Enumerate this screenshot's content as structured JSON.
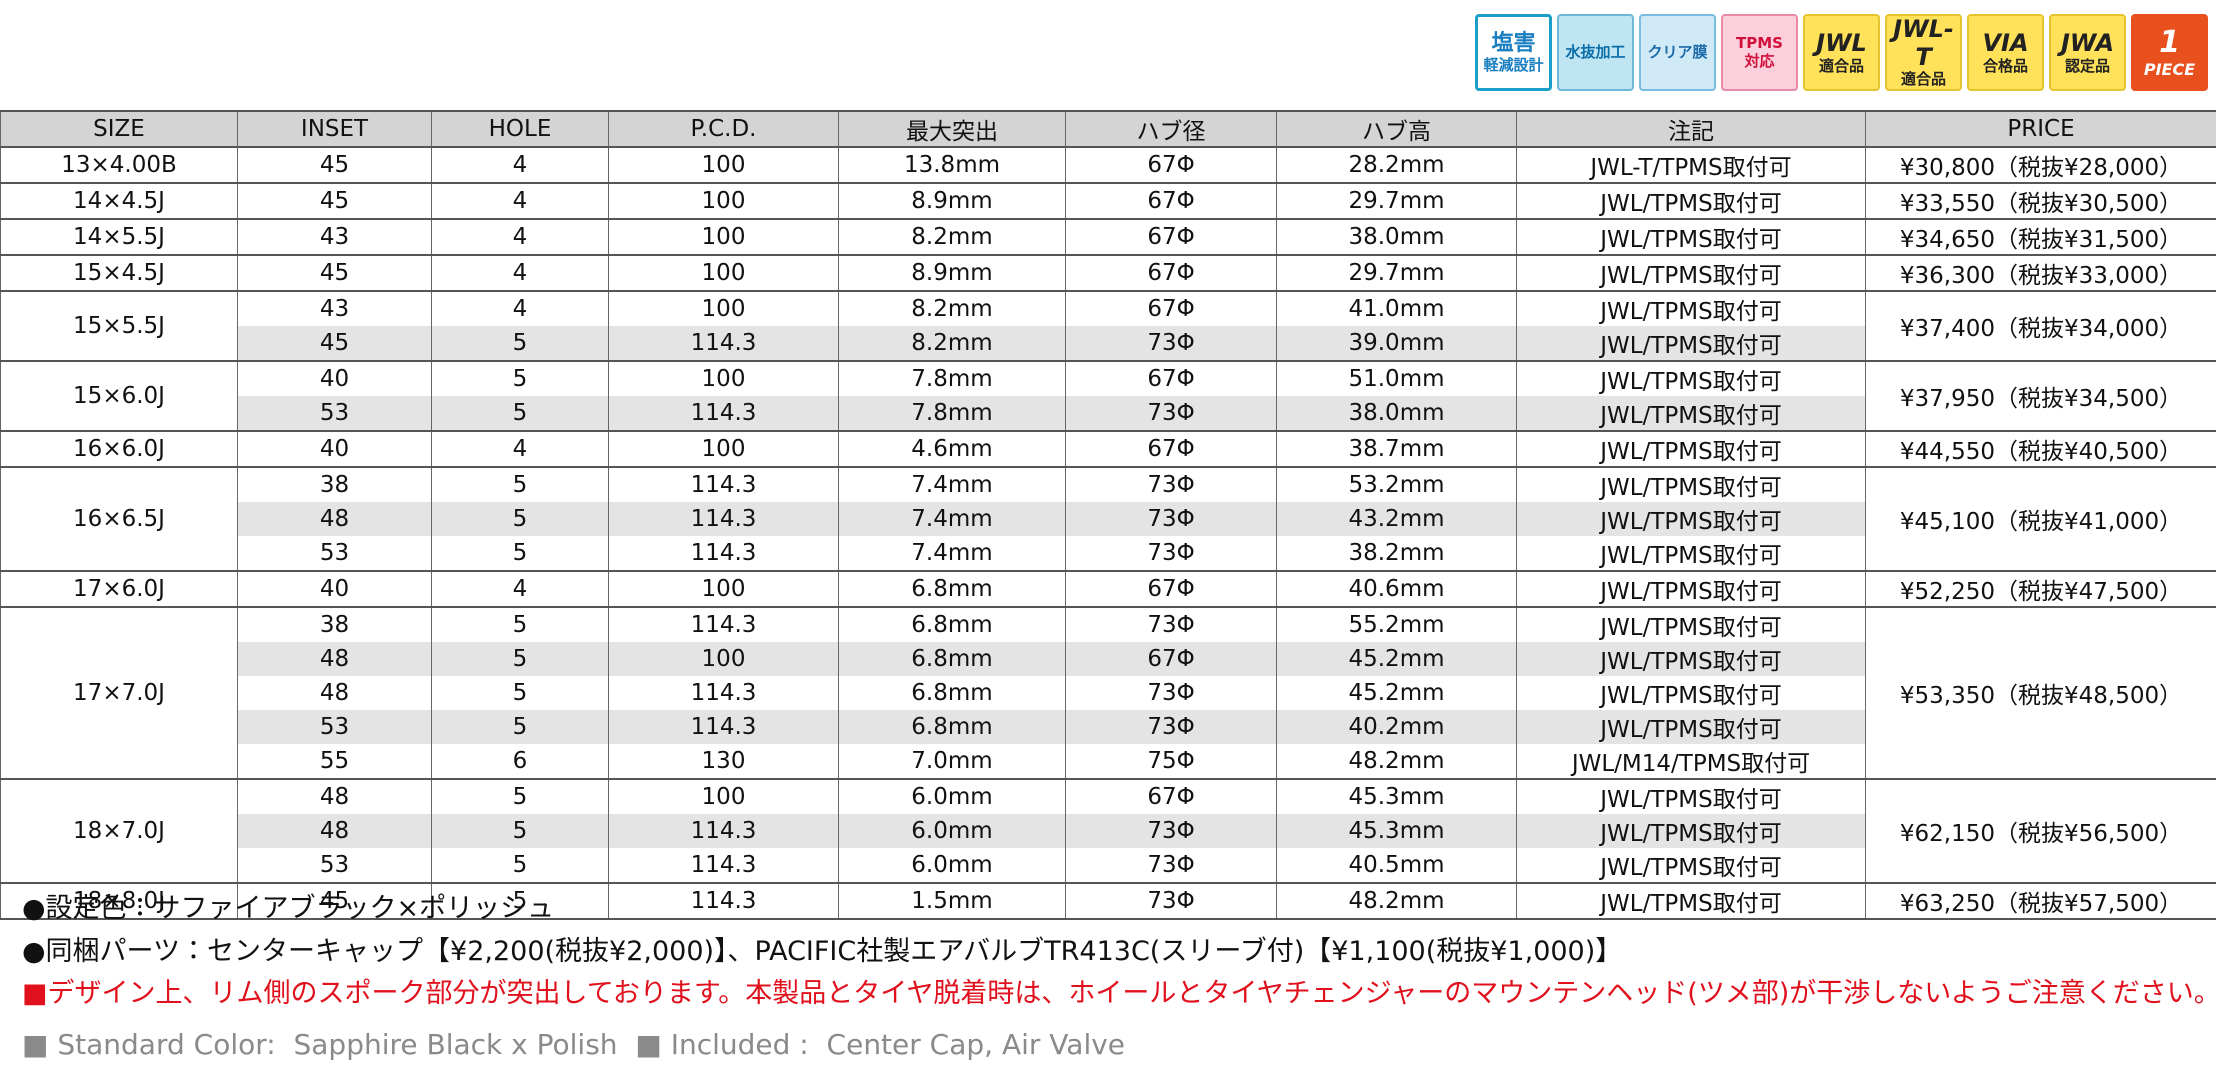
{
  "badges": [
    {
      "lines": [
        "塩害",
        "軽減設計"
      ]
    },
    {
      "lines": [
        "水抜加工"
      ]
    },
    {
      "lines": [
        "クリア膜"
      ]
    },
    {
      "lines": [
        "TPMS",
        "対応"
      ]
    },
    {
      "lines": [
        "JWL",
        "適合品"
      ]
    },
    {
      "lines": [
        "JWL-T",
        "適合品"
      ]
    },
    {
      "lines": [
        "VIA",
        "合格品"
      ]
    },
    {
      "lines": [
        "JWA",
        "認定品"
      ]
    },
    {
      "lines": [
        "1",
        "PIECE"
      ]
    }
  ],
  "table": {
    "columns": [
      "SIZE",
      "INSET",
      "HOLE",
      "P.C.D.",
      "最大突出",
      "ハブ径",
      "ハブ高",
      "注記",
      "PRICE"
    ],
    "groups": [
      {
        "size": "13×4.00B",
        "price": "¥30,800（税抜¥28,000）",
        "rows": [
          {
            "inset": "45",
            "hole": "4",
            "pcd": "100",
            "max_offset": "13.8mm",
            "hub_diameter": "67Φ",
            "hub_height": "28.2mm",
            "note": "JWL-T/TPMS取付可"
          }
        ]
      },
      {
        "size": "14×4.5J",
        "price": "¥33,550（税抜¥30,500）",
        "rows": [
          {
            "inset": "45",
            "hole": "4",
            "pcd": "100",
            "max_offset": "8.9mm",
            "hub_diameter": "67Φ",
            "hub_height": "29.7mm",
            "note": "JWL/TPMS取付可"
          }
        ]
      },
      {
        "size": "14×5.5J",
        "price": "¥34,650（税抜¥31,500）",
        "rows": [
          {
            "inset": "43",
            "hole": "4",
            "pcd": "100",
            "max_offset": "8.2mm",
            "hub_diameter": "67Φ",
            "hub_height": "38.0mm",
            "note": "JWL/TPMS取付可"
          }
        ]
      },
      {
        "size": "15×4.5J",
        "price": "¥36,300（税抜¥33,000）",
        "rows": [
          {
            "inset": "45",
            "hole": "4",
            "pcd": "100",
            "max_offset": "8.9mm",
            "hub_diameter": "67Φ",
            "hub_height": "29.7mm",
            "note": "JWL/TPMS取付可"
          }
        ]
      },
      {
        "size": "15×5.5J",
        "price": "¥37,400（税抜¥34,000）",
        "rows": [
          {
            "inset": "43",
            "hole": "4",
            "pcd": "100",
            "max_offset": "8.2mm",
            "hub_diameter": "67Φ",
            "hub_height": "41.0mm",
            "note": "JWL/TPMS取付可"
          },
          {
            "inset": "45",
            "hole": "5",
            "pcd": "114.3",
            "max_offset": "8.2mm",
            "hub_diameter": "73Φ",
            "hub_height": "39.0mm",
            "note": "JWL/TPMS取付可"
          }
        ]
      },
      {
        "size": "15×6.0J",
        "price": "¥37,950（税抜¥34,500）",
        "rows": [
          {
            "inset": "40",
            "hole": "5",
            "pcd": "100",
            "max_offset": "7.8mm",
            "hub_diameter": "67Φ",
            "hub_height": "51.0mm",
            "note": "JWL/TPMS取付可"
          },
          {
            "inset": "53",
            "hole": "5",
            "pcd": "114.3",
            "max_offset": "7.8mm",
            "hub_diameter": "73Φ",
            "hub_height": "38.0mm",
            "note": "JWL/TPMS取付可"
          }
        ]
      },
      {
        "size": "16×6.0J",
        "price": "¥44,550（税抜¥40,500）",
        "rows": [
          {
            "inset": "40",
            "hole": "4",
            "pcd": "100",
            "max_offset": "4.6mm",
            "hub_diameter": "67Φ",
            "hub_height": "38.7mm",
            "note": "JWL/TPMS取付可"
          }
        ]
      },
      {
        "size": "16×6.5J",
        "price": "¥45,100（税抜¥41,000）",
        "rows": [
          {
            "inset": "38",
            "hole": "5",
            "pcd": "114.3",
            "max_offset": "7.4mm",
            "hub_diameter": "73Φ",
            "hub_height": "53.2mm",
            "note": "JWL/TPMS取付可"
          },
          {
            "inset": "48",
            "hole": "5",
            "pcd": "114.3",
            "max_offset": "7.4mm",
            "hub_diameter": "73Φ",
            "hub_height": "43.2mm",
            "note": "JWL/TPMS取付可"
          },
          {
            "inset": "53",
            "hole": "5",
            "pcd": "114.3",
            "max_offset": "7.4mm",
            "hub_diameter": "73Φ",
            "hub_height": "38.2mm",
            "note": "JWL/TPMS取付可"
          }
        ]
      },
      {
        "size": "17×6.0J",
        "price": "¥52,250（税抜¥47,500）",
        "rows": [
          {
            "inset": "40",
            "hole": "4",
            "pcd": "100",
            "max_offset": "6.8mm",
            "hub_diameter": "67Φ",
            "hub_height": "40.6mm",
            "note": "JWL/TPMS取付可"
          }
        ]
      },
      {
        "size": "17×7.0J",
        "price": "¥53,350（税抜¥48,500）",
        "rows": [
          {
            "inset": "38",
            "hole": "5",
            "pcd": "114.3",
            "max_offset": "6.8mm",
            "hub_diameter": "73Φ",
            "hub_height": "55.2mm",
            "note": "JWL/TPMS取付可"
          },
          {
            "inset": "48",
            "hole": "5",
            "pcd": "100",
            "max_offset": "6.8mm",
            "hub_diameter": "67Φ",
            "hub_height": "45.2mm",
            "note": "JWL/TPMS取付可"
          },
          {
            "inset": "48",
            "hole": "5",
            "pcd": "114.3",
            "max_offset": "6.8mm",
            "hub_diameter": "73Φ",
            "hub_height": "45.2mm",
            "note": "JWL/TPMS取付可"
          },
          {
            "inset": "53",
            "hole": "5",
            "pcd": "114.3",
            "max_offset": "6.8mm",
            "hub_diameter": "73Φ",
            "hub_height": "40.2mm",
            "note": "JWL/TPMS取付可"
          },
          {
            "inset": "55",
            "hole": "6",
            "pcd": "130",
            "max_offset": "7.0mm",
            "hub_diameter": "75Φ",
            "hub_height": "48.2mm",
            "note": "JWL/M14/TPMS取付可"
          }
        ]
      },
      {
        "size": "18×7.0J",
        "price": "¥62,150（税抜¥56,500）",
        "rows": [
          {
            "inset": "48",
            "hole": "5",
            "pcd": "100",
            "max_offset": "6.0mm",
            "hub_diameter": "67Φ",
            "hub_height": "45.3mm",
            "note": "JWL/TPMS取付可"
          },
          {
            "inset": "48",
            "hole": "5",
            "pcd": "114.3",
            "max_offset": "6.0mm",
            "hub_diameter": "73Φ",
            "hub_height": "45.3mm",
            "note": "JWL/TPMS取付可"
          },
          {
            "inset": "53",
            "hole": "5",
            "pcd": "114.3",
            "max_offset": "6.0mm",
            "hub_diameter": "73Φ",
            "hub_height": "40.5mm",
            "note": "JWL/TPMS取付可"
          }
        ]
      },
      {
        "size": "18×8.0J",
        "price": "¥63,250（税抜¥57,500）",
        "rows": [
          {
            "inset": "45",
            "hole": "5",
            "pcd": "114.3",
            "max_offset": "1.5mm",
            "hub_diameter": "73Φ",
            "hub_height": "48.2mm",
            "note": "JWL/TPMS取付可"
          }
        ]
      }
    ]
  },
  "notes": [
    "●設定色：サファイアブラック×ポリッシュ",
    "●同梱パーツ：センターキャップ【¥2,200(税抜¥2,000)】、PACIFIC社製エアバルブTR413C(スリーブ付)【¥1,100(税抜¥1,000)】"
  ],
  "warning": "■デザイン上、リム側のスポーク部分が突出しております。本製品とタイヤ脱着時は、ホイールとタイヤチェンジャーのマウンテンヘッド(ツメ部)が干渉しないようご注意ください。",
  "english_note": "■ Standard Color:  Sapphire Black x Polish  ■ Included :  Center Cap, Air Valve"
}
